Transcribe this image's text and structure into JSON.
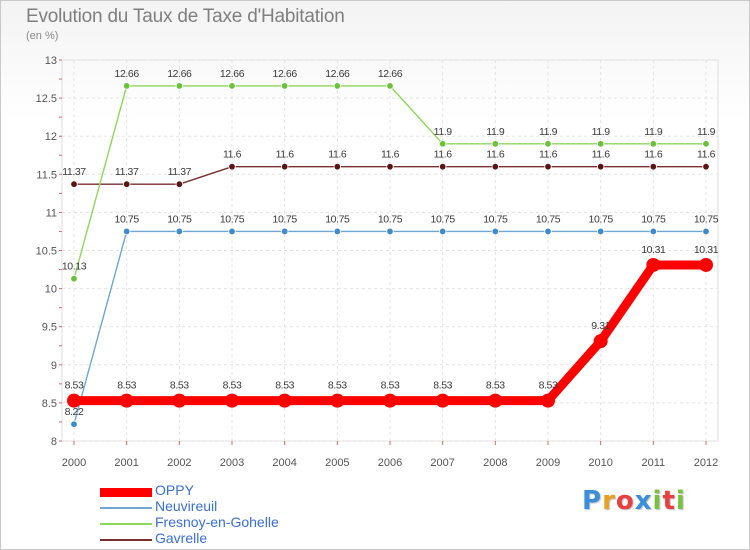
{
  "header": {
    "title": "Evolution du Taux de Taxe d'Habitation",
    "subtitle": "(en %)"
  },
  "brand": {
    "letters": [
      "P",
      "r",
      "o",
      "x",
      "i",
      "t",
      "i"
    ],
    "colors": [
      "#3a8fd8",
      "#e8a020",
      "#e84040",
      "#3a8fd8",
      "#7ac043",
      "#e84040",
      "#7ac043"
    ]
  },
  "chart_data": {
    "type": "line",
    "title": "Evolution du Taux de Taxe d'Habitation",
    "ylabel": "(en %)",
    "xlabel": "",
    "ylim": [
      8,
      13
    ],
    "yticks": [
      "8",
      "8.5",
      "9",
      "9.5",
      "10",
      "10.5",
      "11",
      "11.5",
      "12",
      "12.5",
      "13"
    ],
    "ytick_values": [
      8,
      8.5,
      9,
      9.5,
      10,
      10.5,
      11,
      11.5,
      12,
      12.5,
      13
    ],
    "categories": [
      "2000",
      "2001",
      "2002",
      "2003",
      "2004",
      "2005",
      "2006",
      "2007",
      "2008",
      "2009",
      "2010",
      "2011",
      "2012"
    ],
    "grid": true,
    "series": [
      {
        "name": "Gavrelle",
        "color": "#7a2f2f",
        "point_color": "#5a1414",
        "weight": "thin",
        "values": [
          11.37,
          11.37,
          11.37,
          11.6,
          11.6,
          11.6,
          11.6,
          11.6,
          11.6,
          11.6,
          11.6,
          11.6,
          11.6
        ],
        "labels": [
          "11.37",
          "11.37",
          "11.37",
          "11.6",
          "11.6",
          "11.6",
          "11.6",
          "11.6",
          "11.6",
          "11.6",
          "11.6",
          "11.6",
          "11.6"
        ]
      },
      {
        "name": "Fresnoy-en-Gohelle",
        "color": "#8fd65e",
        "point_color": "#6cc13a",
        "weight": "thin",
        "values": [
          10.13,
          12.66,
          12.66,
          12.66,
          12.66,
          12.66,
          12.66,
          11.9,
          11.9,
          11.9,
          11.9,
          11.9,
          11.9
        ],
        "labels": [
          "10.13",
          "12.66",
          "12.66",
          "12.66",
          "12.66",
          "12.66",
          "12.66",
          "11.9",
          "11.9",
          "11.9",
          "11.9",
          "11.9",
          "11.9"
        ]
      },
      {
        "name": "Neuvireuil",
        "color": "#6ea6d4",
        "point_color": "#3f8ac8",
        "weight": "thin",
        "values": [
          8.22,
          10.75,
          10.75,
          10.75,
          10.75,
          10.75,
          10.75,
          10.75,
          10.75,
          10.75,
          10.75,
          10.75,
          10.75
        ],
        "labels": [
          "8.22",
          "10.75",
          "10.75",
          "10.75",
          "10.75",
          "10.75",
          "10.75",
          "10.75",
          "10.75",
          "10.75",
          "10.75",
          "10.75",
          "10.75"
        ]
      },
      {
        "name": "OPPY",
        "color": "#ff0000",
        "point_color": "#ff0000",
        "weight": "thick",
        "values": [
          8.53,
          8.53,
          8.53,
          8.53,
          8.53,
          8.53,
          8.53,
          8.53,
          8.53,
          8.53,
          9.31,
          10.31,
          10.31
        ],
        "labels": [
          "8.53",
          "8.53",
          "8.53",
          "8.53",
          "8.53",
          "8.53",
          "8.53",
          "8.53",
          "8.53",
          "8.53",
          "9.31",
          "10.31",
          "10.31"
        ]
      }
    ],
    "legend": [
      "OPPY",
      "Neuvireuil",
      "Fresnoy-en-Gohelle",
      "Gavrelle"
    ],
    "legend_position": "bottom-left"
  }
}
